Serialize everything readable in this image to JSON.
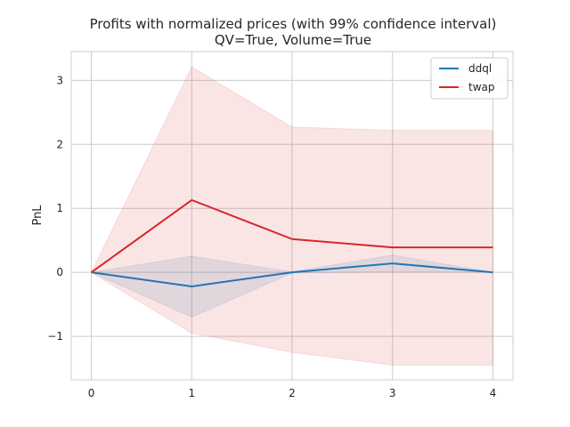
{
  "chart_data": {
    "type": "line",
    "title": "Profits with normalized prices (with 99% confidence interval)",
    "subtitle": "QV=True, Volume=True",
    "xlabel": "",
    "ylabel": "PnL",
    "x": [
      0,
      1,
      2,
      3,
      4
    ],
    "xlim": [
      -0.2,
      4.2
    ],
    "ylim": [
      -1.68,
      3.45
    ],
    "xticks": [
      0,
      1,
      2,
      3,
      4
    ],
    "yticks": [
      -1,
      0,
      1,
      2,
      3
    ],
    "ytick_labels": [
      "−1",
      "0",
      "1",
      "2",
      "3"
    ],
    "grid": true,
    "legend_position": "top-right",
    "series": [
      {
        "name": "ddql",
        "color": "#1f77b4",
        "values": [
          0.0,
          -0.22,
          0.0,
          0.14,
          0.0
        ],
        "ci_lower": [
          0.0,
          -0.7,
          -0.01,
          0.01,
          0.0
        ],
        "ci_upper": [
          0.0,
          0.25,
          0.01,
          0.27,
          0.0
        ]
      },
      {
        "name": "twap",
        "color": "#d62728",
        "values": [
          0.0,
          1.13,
          0.52,
          0.39,
          0.39
        ],
        "ci_lower": [
          0.0,
          -0.95,
          -1.25,
          -1.45,
          -1.45
        ],
        "ci_upper": [
          0.0,
          3.21,
          2.27,
          2.22,
          2.22
        ]
      }
    ]
  }
}
